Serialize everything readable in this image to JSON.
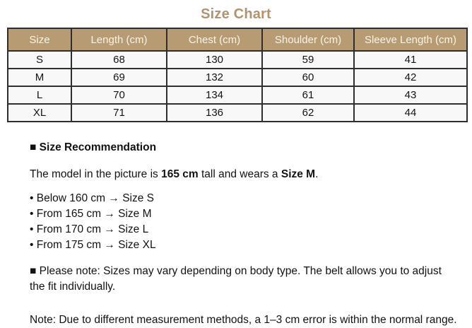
{
  "title": "Size Chart",
  "colors": {
    "accent_tan": "#b2936e",
    "table_header_bg": "#b79b73",
    "table_header_text": "#f9f3e6",
    "table_row_bg": "#f8f8f8",
    "table_border": "#2e2e2e",
    "body_text": "#121212"
  },
  "table": {
    "headers": [
      "Size",
      "Length (cm)",
      "Chest (cm)",
      "Shoulder (cm)",
      "Sleeve Length (cm)"
    ],
    "rows": [
      [
        "S",
        "68",
        "130",
        "59",
        "41"
      ],
      [
        "M",
        "69",
        "132",
        "60",
        "42"
      ],
      [
        "L",
        "70",
        "134",
        "61",
        "43"
      ],
      [
        "XL",
        "71",
        "136",
        "62",
        "44"
      ]
    ]
  },
  "recommendation": {
    "heading": "■ Size Recommendation",
    "model_line": {
      "prefix": "The model in the picture is ",
      "height": "165 cm",
      "middle": " tall and wears a ",
      "size": "Size M",
      "suffix": "."
    },
    "bullets": [
      "• Below 160 cm → Size S",
      "• From 165 cm → Size M",
      "• From 170 cm → Size L",
      "• From 175 cm → Size XL"
    ]
  },
  "notes": {
    "please_note": "■ Please note: Sizes may vary depending on body type. The belt allows you to adjust the fit individually.",
    "measurement_note": "Note: Due to different measurement methods, a 1–3 cm error is within the normal range."
  }
}
